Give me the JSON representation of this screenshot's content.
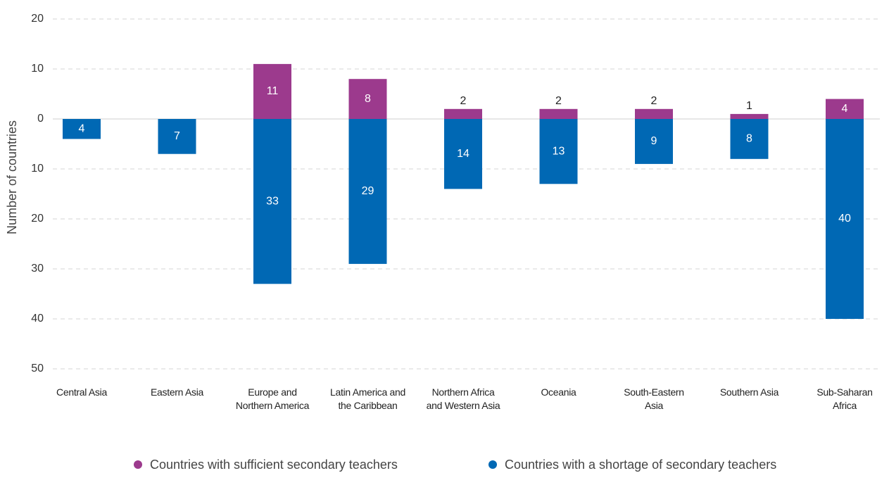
{
  "chart_data": {
    "type": "bar",
    "stacked": true,
    "y_label": "Number of countries",
    "categories": [
      "Central Asia",
      "Eastern Asia",
      "Europe and Northern America",
      "Latin America and the Caribbean",
      "Northern Africa and Western Asia",
      "Oceania",
      "South-Eastern Asia",
      "Southern Asia",
      "Sub-Saharan Africa"
    ],
    "series": [
      {
        "name": "Countries with sufficient secondary teachers",
        "color": "#9c3a8d",
        "values": [
          null,
          null,
          11,
          8,
          2,
          2,
          2,
          1,
          4
        ]
      },
      {
        "name": "Countries with a shortage of secondary teachers",
        "color": "#0068b4",
        "values": [
          -4,
          -7,
          -33,
          -29,
          -14,
          -13,
          -9,
          -8,
          -40
        ],
        "value_labels": [
          "4",
          "7",
          "33",
          "29",
          "14",
          "13",
          "9",
          "8",
          "40"
        ]
      }
    ],
    "ylim": [
      -50,
      20
    ],
    "yticks": [
      {
        "value": -50,
        "label": "50"
      },
      {
        "value": -40,
        "label": "40"
      },
      {
        "value": -30,
        "label": "30"
      },
      {
        "value": -20,
        "label": "20"
      },
      {
        "value": -10,
        "label": "10"
      },
      0,
      10,
      20
    ],
    "grid": true,
    "legend": "bottom"
  }
}
